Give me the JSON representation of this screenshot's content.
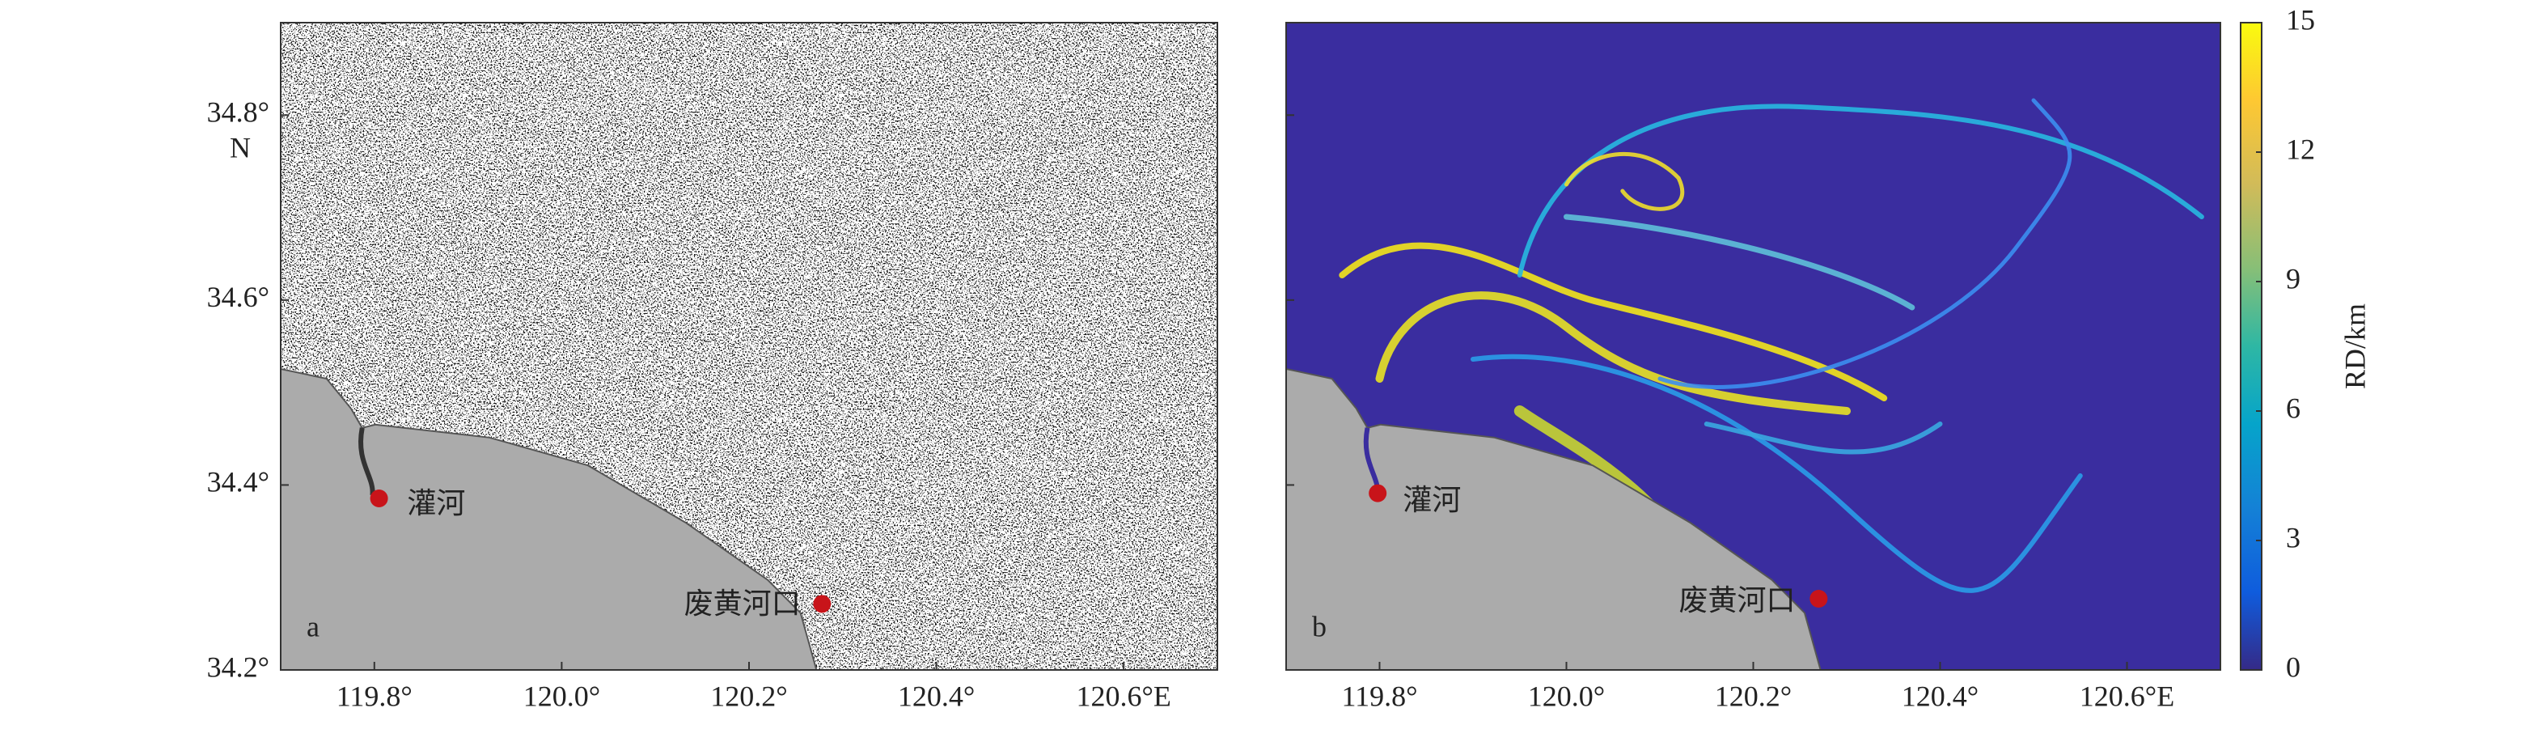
{
  "chart_data": [
    {
      "type": "map",
      "panel_label": "a",
      "xlim": [
        119.7,
        120.7
      ],
      "xticks": [
        {
          "value": 119.8,
          "label": "119.8°"
        },
        {
          "value": 120.0,
          "label": "120.0°"
        },
        {
          "value": 120.2,
          "label": "120.2°"
        },
        {
          "value": 120.4,
          "label": "120.4°"
        },
        {
          "value": 120.6,
          "label": "120.6°E"
        }
      ],
      "ylim": [
        34.2,
        34.9
      ],
      "yticks": [
        {
          "value": 34.2,
          "label": "34.2°"
        },
        {
          "value": 34.4,
          "label": "34.4°"
        },
        {
          "value": 34.6,
          "label": "34.6°"
        },
        {
          "value": 34.8,
          "label": "34.8°"
        }
      ],
      "ylabel": "N",
      "places": [
        "灌河",
        "废黄河口"
      ]
    },
    {
      "type": "map",
      "panel_label": "b",
      "xlim": [
        119.7,
        120.7
      ],
      "xticks": [
        {
          "value": 119.8,
          "label": "119.8°"
        },
        {
          "value": 120.0,
          "label": "120.0°"
        },
        {
          "value": 120.2,
          "label": "120.2°"
        },
        {
          "value": 120.4,
          "label": "120.4°"
        },
        {
          "value": 120.6,
          "label": "120.6°E"
        }
      ],
      "ylim": [
        34.2,
        34.9
      ],
      "yticks": [
        34.2,
        34.4,
        34.6,
        34.8
      ],
      "places": [
        "灌河",
        "废黄河口"
      ],
      "colorbar": {
        "label": "RD/km",
        "lim": [
          0,
          15
        ],
        "ticks": [
          0,
          3,
          6,
          9,
          12,
          15
        ]
      }
    }
  ]
}
